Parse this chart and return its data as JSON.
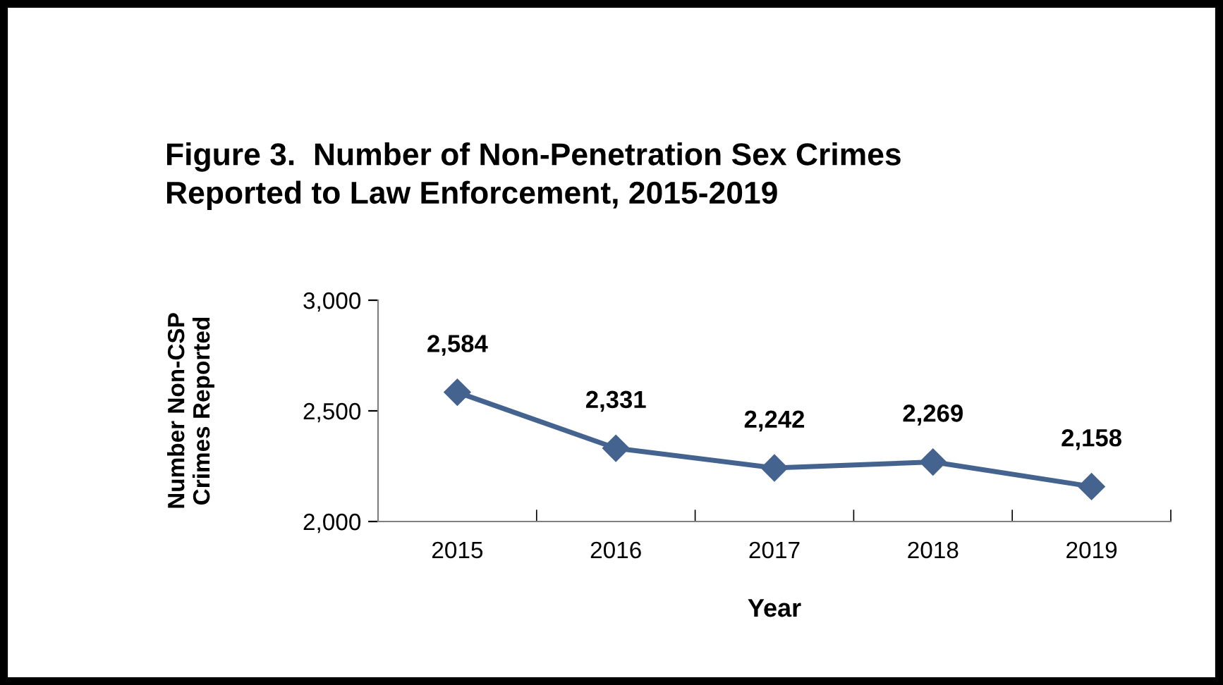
{
  "chart_data": {
    "type": "line",
    "title": "Figure 3.  Number of Non-Penetration Sex Crimes\nReported to Law Enforcement, 2015-2019",
    "xlabel": "Year",
    "ylabel": "Number Non-CSP\nCrimes Reported",
    "categories": [
      "2015",
      "2016",
      "2017",
      "2018",
      "2019"
    ],
    "series": [
      {
        "color": "#44638f",
        "values": [
          2584,
          2331,
          2242,
          2269,
          2158
        ]
      }
    ],
    "ylim": [
      2000,
      3000
    ],
    "yticks": [
      {
        "value": 2000,
        "label": "2,000"
      },
      {
        "value": 2500,
        "label": "2,500"
      },
      {
        "value": 3000,
        "label": "3,000"
      }
    ],
    "value_labels": [
      "2,584",
      "2,331",
      "2,242",
      "2,269",
      "2,158"
    ],
    "marker": "diamond",
    "line_style": "solid",
    "grid": false,
    "legend": false
  }
}
